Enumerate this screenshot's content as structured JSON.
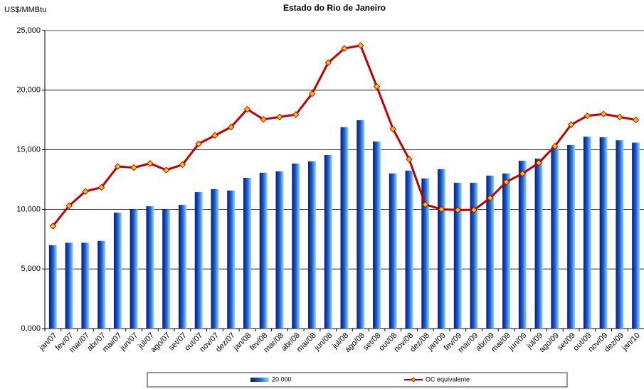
{
  "chart_data": {
    "type": "bar_line",
    "title": "Estado do Rio de Janeiro",
    "y_label": "US$/MMBtu",
    "categories": [
      "jan/07",
      "fev/07",
      "mar/07",
      "abr/07",
      "mai/07",
      "jun/07",
      "jul/07",
      "ago/07",
      "set/07",
      "out/07",
      "nov/07",
      "dez/07",
      "jan/08",
      "fev/08",
      "mar/08",
      "abr/08",
      "mai/08",
      "jun/08",
      "jul/08",
      "ago/08",
      "set/08",
      "out/08",
      "nov/08",
      "dez/08",
      "jan/09",
      "fev/09",
      "mar/09",
      "abr/09",
      "mai/09",
      "jun/09",
      "jul/09",
      "ago/09",
      "set/09",
      "out/09",
      "nov/09",
      "dez/09",
      "jan/10"
    ],
    "series": [
      {
        "name": "20.000",
        "type": "bar",
        "color": "#1f5fd6",
        "values": [
          7000,
          7200,
          7200,
          7350,
          9730,
          10000,
          10260,
          10000,
          10380,
          11450,
          11700,
          11580,
          12650,
          13070,
          13190,
          13840,
          14020,
          14560,
          16890,
          17480,
          15690,
          13010,
          13250,
          12590,
          13370,
          12230,
          12230,
          12830,
          13010,
          14080,
          14260,
          15200,
          15400,
          16100,
          16050,
          15800,
          15600
        ]
      },
      {
        "name": "OC equivalente",
        "type": "line",
        "color": "#c00000",
        "marker_color": "#ffcc00",
        "values": [
          8600,
          10300,
          11500,
          11850,
          13600,
          13500,
          13850,
          13300,
          13750,
          15500,
          16200,
          16900,
          18400,
          17550,
          17750,
          17950,
          19700,
          22300,
          23500,
          23750,
          20300,
          16750,
          14200,
          10400,
          10000,
          9950,
          9950,
          10950,
          12300,
          13000,
          13900,
          15300,
          17100,
          17850,
          18000,
          17750,
          17500
        ]
      }
    ],
    "ylim": [
      0,
      25000
    ],
    "yticks": [
      {
        "value": 0,
        "label": "0,000"
      },
      {
        "value": 5000,
        "label": "5,000"
      },
      {
        "value": 10000,
        "label": "10,000"
      },
      {
        "value": 15000,
        "label": "15,000"
      },
      {
        "value": 20000,
        "label": "20,000"
      },
      {
        "value": 25000,
        "label": "25,000"
      }
    ],
    "grid": true
  }
}
